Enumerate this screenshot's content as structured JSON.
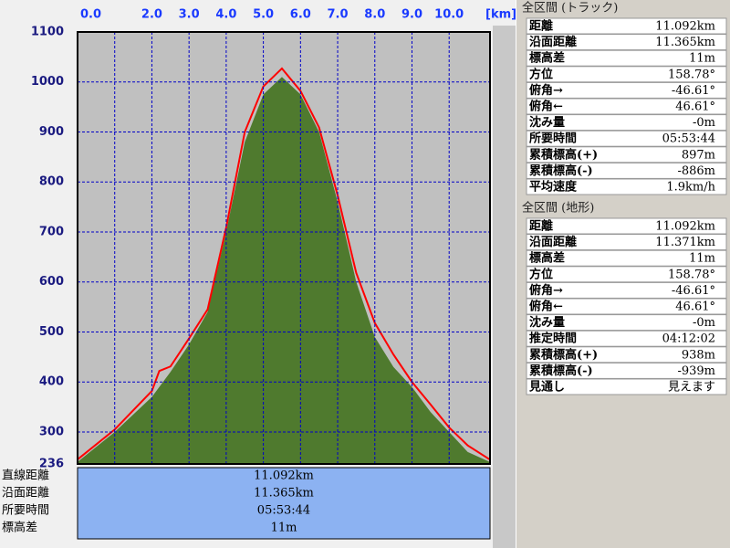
{
  "chart_data": {
    "type": "area-line",
    "x_label": "[km]",
    "xlim": [
      0,
      11.1
    ],
    "xticks": [
      {
        "value": 0,
        "label": "0.0"
      },
      {
        "value": 1,
        "label": null
      },
      {
        "value": 2,
        "label": "2.0"
      },
      {
        "value": 3,
        "label": "3.0"
      },
      {
        "value": 4,
        "label": "4.0"
      },
      {
        "value": 5,
        "label": "5.0"
      },
      {
        "value": 6,
        "label": "6.0"
      },
      {
        "value": 7,
        "label": "7.0"
      },
      {
        "value": 8,
        "label": "8.0"
      },
      {
        "value": 9,
        "label": "9.0"
      },
      {
        "value": 10,
        "label": "10.0"
      }
    ],
    "ylim": [
      236,
      1100
    ],
    "yticks": [
      236,
      300,
      400,
      500,
      600,
      700,
      800,
      900,
      1000,
      1100
    ],
    "grid": true,
    "series": [
      {
        "name": "地形",
        "kind": "area",
        "color": "#4f7a2e",
        "x": [
          0,
          1,
          2,
          2.5,
          3,
          3.5,
          4,
          4.5,
          5,
          5.5,
          6,
          6.5,
          7,
          7.5,
          8,
          8.5,
          9,
          9.5,
          10,
          10.5,
          11.092
        ],
        "values": [
          240,
          300,
          370,
          420,
          475,
          540,
          700,
          880,
          975,
          1010,
          975,
          900,
          760,
          600,
          490,
          430,
          390,
          340,
          300,
          260,
          240
        ]
      },
      {
        "name": "トラック",
        "kind": "line",
        "color": "#ff0000",
        "x": [
          0,
          1,
          2,
          2.2,
          2.5,
          3,
          3.5,
          4,
          4.5,
          5,
          5.5,
          6,
          6.5,
          7,
          7.5,
          8,
          8.5,
          9,
          9.5,
          10,
          10.5,
          11.092
        ],
        "values": [
          245,
          305,
          382,
          422,
          431,
          487,
          545,
          709,
          900,
          991,
          1027,
          982,
          909,
          773,
          618,
          518,
          455,
          400,
          355,
          309,
          273,
          245
        ]
      }
    ]
  },
  "summary": {
    "labels": [
      "直線距離",
      "沿面距離",
      "所要時間",
      "標高差"
    ],
    "values": [
      "11.092km",
      "11.365km",
      "05:53:44",
      "11m"
    ]
  },
  "track_panel": {
    "title": "全区間 (トラック)",
    "rows": [
      [
        "距離",
        "11.092km"
      ],
      [
        "沿面距離",
        "11.365km"
      ],
      [
        "標高差",
        "11m"
      ],
      [
        "方位",
        "158.78°"
      ],
      [
        "俯角→",
        "-46.61°"
      ],
      [
        "俯角←",
        "46.61°"
      ],
      [
        "沈み量",
        "-0m"
      ],
      [
        "所要時間",
        "05:53:44"
      ],
      [
        "累積標高(+)",
        "897m"
      ],
      [
        "累積標高(-)",
        "-886m"
      ],
      [
        "平均速度",
        "1.9km/h"
      ]
    ]
  },
  "terrain_panel": {
    "title": "全区間 (地形)",
    "rows": [
      [
        "距離",
        "11.092km"
      ],
      [
        "沿面距離",
        "11.371km"
      ],
      [
        "標高差",
        "11m"
      ],
      [
        "方位",
        "158.78°"
      ],
      [
        "俯角→",
        "-46.61°"
      ],
      [
        "俯角←",
        "46.61°"
      ],
      [
        "沈み量",
        "-0m"
      ],
      [
        "推定時間",
        "04:12:02"
      ],
      [
        "累積標高(+)",
        "938m"
      ],
      [
        "累積標高(-)",
        "-939m"
      ],
      [
        "見通し",
        "見えます"
      ]
    ]
  }
}
